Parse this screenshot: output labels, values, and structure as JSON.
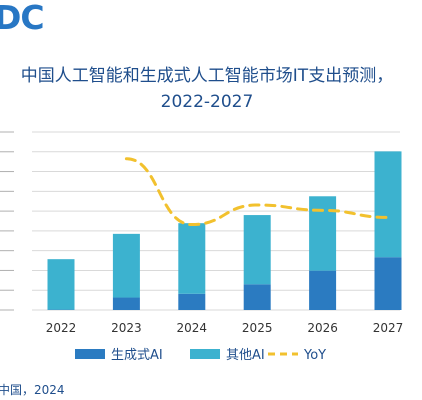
{
  "logo": "DC",
  "source": "中国，2024",
  "chart_data": {
    "type": "bar",
    "title": "中国人工智能和生成式人工智能市场IT支出预测，",
    "subtitle": "2022-2027",
    "categories": [
      "2022",
      "2023",
      "2024",
      "2025",
      "2026",
      "2027"
    ],
    "series": [
      {
        "name": "生成式AI",
        "kind": "bar-stacked",
        "color": "#2b7bc1",
        "values": [
          0.2,
          6.3,
          8.2,
          13.0,
          19.9,
          26.7
        ]
      },
      {
        "name": "其他AI",
        "kind": "bar-stacked",
        "color": "#3cb2cf",
        "values": [
          25.5,
          32.2,
          35.7,
          35.0,
          37.6,
          53.5
        ]
      },
      {
        "name": "YoY",
        "kind": "line-dashed",
        "color": "#f2c12e",
        "values": [
          null,
          85,
          48,
          59,
          56,
          52
        ],
        "ylim": [
          0,
          100
        ]
      }
    ],
    "ylim": [
      0,
      90
    ],
    "grid": true,
    "legend": "bottom"
  }
}
